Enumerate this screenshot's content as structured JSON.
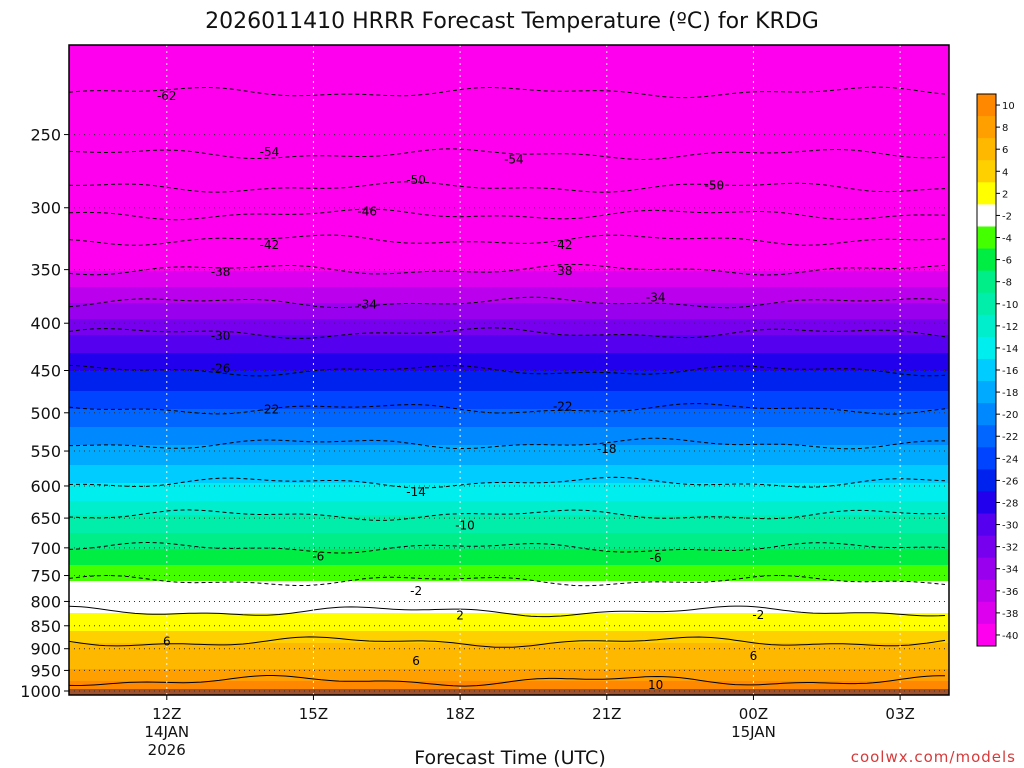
{
  "title": "2026011410 HRRR Forecast Temperature (ºC) for KRDG",
  "credit": "coolwx.com/models",
  "chart_data": {
    "type": "heatmap",
    "title": "2026011410 HRRR Forecast Temperature (ºC) for KRDG",
    "xlabel": "Forecast Time (UTC)",
    "ylabel": "",
    "x_ticks": [
      {
        "label": "12Z",
        "sub": [
          "14JAN",
          "2026"
        ],
        "hour": 12
      },
      {
        "label": "15Z",
        "sub": [],
        "hour": 15
      },
      {
        "label": "18Z",
        "sub": [],
        "hour": 18
      },
      {
        "label": "21Z",
        "sub": [],
        "hour": 21
      },
      {
        "label": "00Z",
        "sub": [
          "15JAN"
        ],
        "hour": 24
      },
      {
        "label": "03Z",
        "sub": [],
        "hour": 27
      }
    ],
    "xlim": [
      10,
      28
    ],
    "y_ticks": [
      250,
      300,
      350,
      400,
      450,
      500,
      550,
      600,
      650,
      700,
      750,
      800,
      850,
      900,
      950,
      1000
    ],
    "ylim_hpa": [
      200,
      1010
    ],
    "y_scale": "log",
    "grid": true,
    "colorbar": {
      "levels": [
        10,
        8,
        6,
        4,
        2,
        -2,
        -4,
        -6,
        -8,
        -10,
        -12,
        -14,
        -16,
        -18,
        -20,
        -22,
        -24,
        -26,
        -28,
        -30,
        -32,
        -34,
        -36,
        -38,
        -40
      ],
      "colors": [
        "#ff8800",
        "#ffa000",
        "#ffb800",
        "#ffd000",
        "#ffff00",
        "#ffffff",
        "#44ff00",
        "#00ee44",
        "#00ee88",
        "#00eeaa",
        "#00eecc",
        "#00eeee",
        "#00ccff",
        "#00aaff",
        "#0088ff",
        "#0066ff",
        "#0044ff",
        "#0022ee",
        "#2200ee",
        "#5500ee",
        "#7700ee",
        "#9900ee",
        "#bb00ee",
        "#dd00ee",
        "#ff00ee"
      ],
      "ground_color": "#a0522d"
    },
    "temperature_profile": [
      {
        "p": 200,
        "t": -64
      },
      {
        "p": 225,
        "t": -62
      },
      {
        "p": 250,
        "t": -56
      },
      {
        "p": 275,
        "t": -52
      },
      {
        "p": 300,
        "t": -47
      },
      {
        "p": 325,
        "t": -42
      },
      {
        "p": 350,
        "t": -38
      },
      {
        "p": 380,
        "t": -34
      },
      {
        "p": 410,
        "t": -30
      },
      {
        "p": 450,
        "t": -26
      },
      {
        "p": 495,
        "t": -22
      },
      {
        "p": 540,
        "t": -18
      },
      {
        "p": 595,
        "t": -14
      },
      {
        "p": 645,
        "t": -10
      },
      {
        "p": 700,
        "t": -6
      },
      {
        "p": 745,
        "t": -3
      },
      {
        "p": 775,
        "t": -1
      },
      {
        "p": 800,
        "t": 1
      },
      {
        "p": 820,
        "t": 2
      },
      {
        "p": 860,
        "t": 4
      },
      {
        "p": 885,
        "t": 6
      },
      {
        "p": 930,
        "t": 7
      },
      {
        "p": 975,
        "t": 10
      },
      {
        "p": 1000,
        "t": 10
      }
    ],
    "contour_labels": [
      {
        "text": "-62",
        "hour": 12.0,
        "p": 227
      },
      {
        "text": "-54",
        "hour": 14.1,
        "p": 261
      },
      {
        "text": "-54",
        "hour": 19.1,
        "p": 266
      },
      {
        "text": "-50",
        "hour": 17.1,
        "p": 280
      },
      {
        "text": "-50",
        "hour": 23.2,
        "p": 284
      },
      {
        "text": "-46",
        "hour": 16.1,
        "p": 303
      },
      {
        "text": "-42",
        "hour": 14.1,
        "p": 329
      },
      {
        "text": "-42",
        "hour": 20.1,
        "p": 329
      },
      {
        "text": "-38",
        "hour": 13.1,
        "p": 352
      },
      {
        "text": "-38",
        "hour": 20.1,
        "p": 351
      },
      {
        "text": "-34",
        "hour": 16.1,
        "p": 382
      },
      {
        "text": "-34",
        "hour": 22.0,
        "p": 375
      },
      {
        "text": "-30",
        "hour": 13.1,
        "p": 413
      },
      {
        "text": "-26",
        "hour": 13.1,
        "p": 448
      },
      {
        "text": "-22",
        "hour": 14.1,
        "p": 496
      },
      {
        "text": "-22",
        "hour": 20.1,
        "p": 492
      },
      {
        "text": "-18",
        "hour": 21.0,
        "p": 547
      },
      {
        "text": "-14",
        "hour": 17.1,
        "p": 609
      },
      {
        "text": "-10",
        "hour": 18.1,
        "p": 662
      },
      {
        "text": "-6",
        "hour": 15.1,
        "p": 715
      },
      {
        "text": "-6",
        "hour": 22.0,
        "p": 718
      },
      {
        "text": "-2",
        "hour": 17.1,
        "p": 779
      },
      {
        "text": "-2",
        "hour": 24.1,
        "p": 827
      },
      {
        "text": "2",
        "hour": 18.0,
        "p": 829
      },
      {
        "text": "6",
        "hour": 12.0,
        "p": 884
      },
      {
        "text": "6",
        "hour": 17.1,
        "p": 928
      },
      {
        "text": "6",
        "hour": 24.0,
        "p": 916
      },
      {
        "text": "10",
        "hour": 22.0,
        "p": 985
      }
    ]
  }
}
